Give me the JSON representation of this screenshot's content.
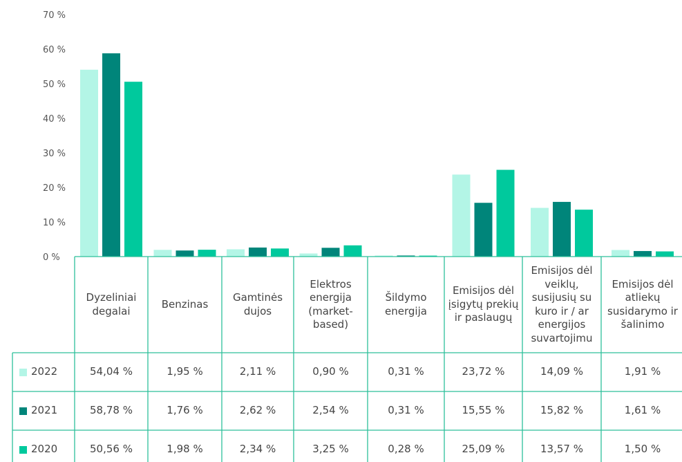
{
  "chart_data": {
    "type": "bar",
    "categories": [
      "Dyzeliniai degalai",
      "Benzinas",
      "Gamtinės dujos",
      "Elektros energija (market-based)",
      "Šildymo energija",
      "Emisijos dėl įsigytų prekių ir paslaugų",
      "Emisijos dėl veiklų, susijusių su kuro ir / ar energijos suvartojimu",
      "Emisijos dėl atliekų susidarymo ir šalinimo"
    ],
    "series": [
      {
        "name": "2022",
        "color": "#b3f5e6",
        "values": [
          54.04,
          1.95,
          2.11,
          0.9,
          0.31,
          23.72,
          14.09,
          1.91
        ],
        "value_labels": [
          "54,04 %",
          "1,95 %",
          "2,11 %",
          "0,90 %",
          "0,31 %",
          "23,72 %",
          "14,09 %",
          "1,91 %"
        ]
      },
      {
        "name": "2021",
        "color": "#00857a",
        "values": [
          58.78,
          1.76,
          2.62,
          2.54,
          0.31,
          15.55,
          15.82,
          1.61
        ],
        "value_labels": [
          "58,78 %",
          "1,76 %",
          "2,62 %",
          "2,54 %",
          "0,31 %",
          "15,55 %",
          "15,82 %",
          "1,61 %"
        ]
      },
      {
        "name": "2020",
        "color": "#00c99d",
        "values": [
          50.56,
          1.98,
          2.34,
          3.25,
          0.28,
          25.09,
          13.57,
          1.5
        ],
        "value_labels": [
          "50,56 %",
          "1,98 %",
          "2,34 %",
          "3,25 %",
          "0,28 %",
          "25,09 %",
          "13,57 %",
          "1,50 %"
        ]
      }
    ],
    "ylim": [
      0,
      70
    ],
    "yticks": [
      {
        "value": 0,
        "label": "0 %"
      },
      {
        "value": 10,
        "label": "10 %"
      },
      {
        "value": 20,
        "label": "20 %"
      },
      {
        "value": 30,
        "label": "30 %"
      },
      {
        "value": 40,
        "label": "40 %"
      },
      {
        "value": 50,
        "label": "50 %"
      },
      {
        "value": 60,
        "label": "60 %"
      },
      {
        "value": 70,
        "label": "70 %"
      }
    ],
    "grid": false
  }
}
